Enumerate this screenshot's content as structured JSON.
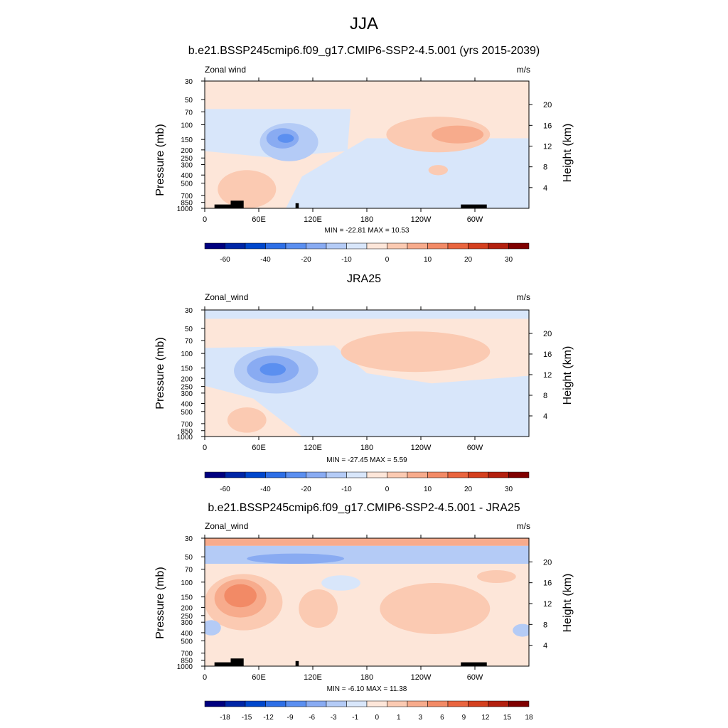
{
  "main_title": "JJA",
  "colors": {
    "scale": [
      "#00007f",
      "#0026a6",
      "#0047cc",
      "#2e6fe6",
      "#5b8ff0",
      "#89abf2",
      "#b4cbf6",
      "#d8e6fa",
      "#fde6d9",
      "#fbcab2",
      "#f7ab8c",
      "#f28a66",
      "#e9653f",
      "#d4401f",
      "#b3200f",
      "#7f0000"
    ],
    "land": "#000000"
  },
  "chart_data": [
    {
      "type": "contour",
      "title": "b.e21.BSSP245cmip6.f09_g17.CMIP6-SSP2-4.5.001 (yrs 2015-2039)",
      "variable": "Zonal wind",
      "units": "m/s",
      "ylabel": "Pressure (mb)",
      "ylabel_right": "Height (km)",
      "x_ticks": [
        "0",
        "60E",
        "120E",
        "180",
        "120W",
        "60W"
      ],
      "x_tick_values": [
        0,
        60,
        120,
        180,
        240,
        300
      ],
      "xlim": [
        0,
        360
      ],
      "y_ticks": [
        "30",
        "50",
        "70",
        "100",
        "150",
        "200",
        "250",
        "300",
        "400",
        "500",
        "700",
        "850",
        "1000"
      ],
      "y_tick_values": [
        30,
        50,
        70,
        100,
        150,
        200,
        250,
        300,
        400,
        500,
        700,
        850,
        1000
      ],
      "y_scale": "log",
      "ylim": [
        1000,
        30
      ],
      "height_ticks": [
        "4",
        "8",
        "12",
        "16",
        "20"
      ],
      "height_tick_values": [
        4,
        8,
        12,
        16,
        20
      ],
      "stats": "MIN = -22.81  MAX =  10.53",
      "colorbar_labels": [
        "-60",
        "-40",
        "-20",
        "-10",
        "0",
        "10",
        "20",
        "30"
      ]
    },
    {
      "type": "contour",
      "title": "JRA25",
      "variable": "Zonal_wind",
      "units": "m/s",
      "ylabel": "Pressure (mb)",
      "ylabel_right": "Height (km)",
      "x_ticks": [
        "0",
        "60E",
        "120E",
        "180",
        "120W",
        "60W"
      ],
      "x_tick_values": [
        0,
        60,
        120,
        180,
        240,
        300
      ],
      "xlim": [
        0,
        360
      ],
      "y_ticks": [
        "30",
        "50",
        "70",
        "100",
        "150",
        "200",
        "250",
        "300",
        "400",
        "500",
        "700",
        "850",
        "1000"
      ],
      "y_tick_values": [
        30,
        50,
        70,
        100,
        150,
        200,
        250,
        300,
        400,
        500,
        700,
        850,
        1000
      ],
      "y_scale": "log",
      "ylim": [
        1000,
        30
      ],
      "height_ticks": [
        "4",
        "8",
        "12",
        "16",
        "20"
      ],
      "height_tick_values": [
        4,
        8,
        12,
        16,
        20
      ],
      "stats": "MIN = -27.45  MAX =   5.59",
      "colorbar_labels": [
        "-60",
        "-40",
        "-20",
        "-10",
        "0",
        "10",
        "20",
        "30"
      ]
    },
    {
      "type": "contour",
      "title": "b.e21.BSSP245cmip6.f09_g17.CMIP6-SSP2-4.5.001 - JRA25",
      "variable": "Zonal_wind",
      "units": "m/s",
      "ylabel": "Pressure (mb)",
      "ylabel_right": "Height (km)",
      "x_ticks": [
        "0",
        "60E",
        "120E",
        "180",
        "120W",
        "60W"
      ],
      "x_tick_values": [
        0,
        60,
        120,
        180,
        240,
        300
      ],
      "xlim": [
        0,
        360
      ],
      "y_ticks": [
        "30",
        "50",
        "70",
        "100",
        "150",
        "200",
        "250",
        "300",
        "400",
        "500",
        "700",
        "850",
        "1000"
      ],
      "y_tick_values": [
        30,
        50,
        70,
        100,
        150,
        200,
        250,
        300,
        400,
        500,
        700,
        850,
        1000
      ],
      "y_scale": "log",
      "ylim": [
        1000,
        30
      ],
      "height_ticks": [
        "4",
        "8",
        "12",
        "16",
        "20"
      ],
      "height_tick_values": [
        4,
        8,
        12,
        16,
        20
      ],
      "stats": "MIN =  -6.10  MAX =  11.38",
      "colorbar_labels": [
        "-18",
        "-15",
        "-12",
        "-9",
        "-6",
        "-3",
        "-1",
        "0",
        "1",
        "3",
        "6",
        "9",
        "12",
        "15",
        "18"
      ]
    }
  ]
}
